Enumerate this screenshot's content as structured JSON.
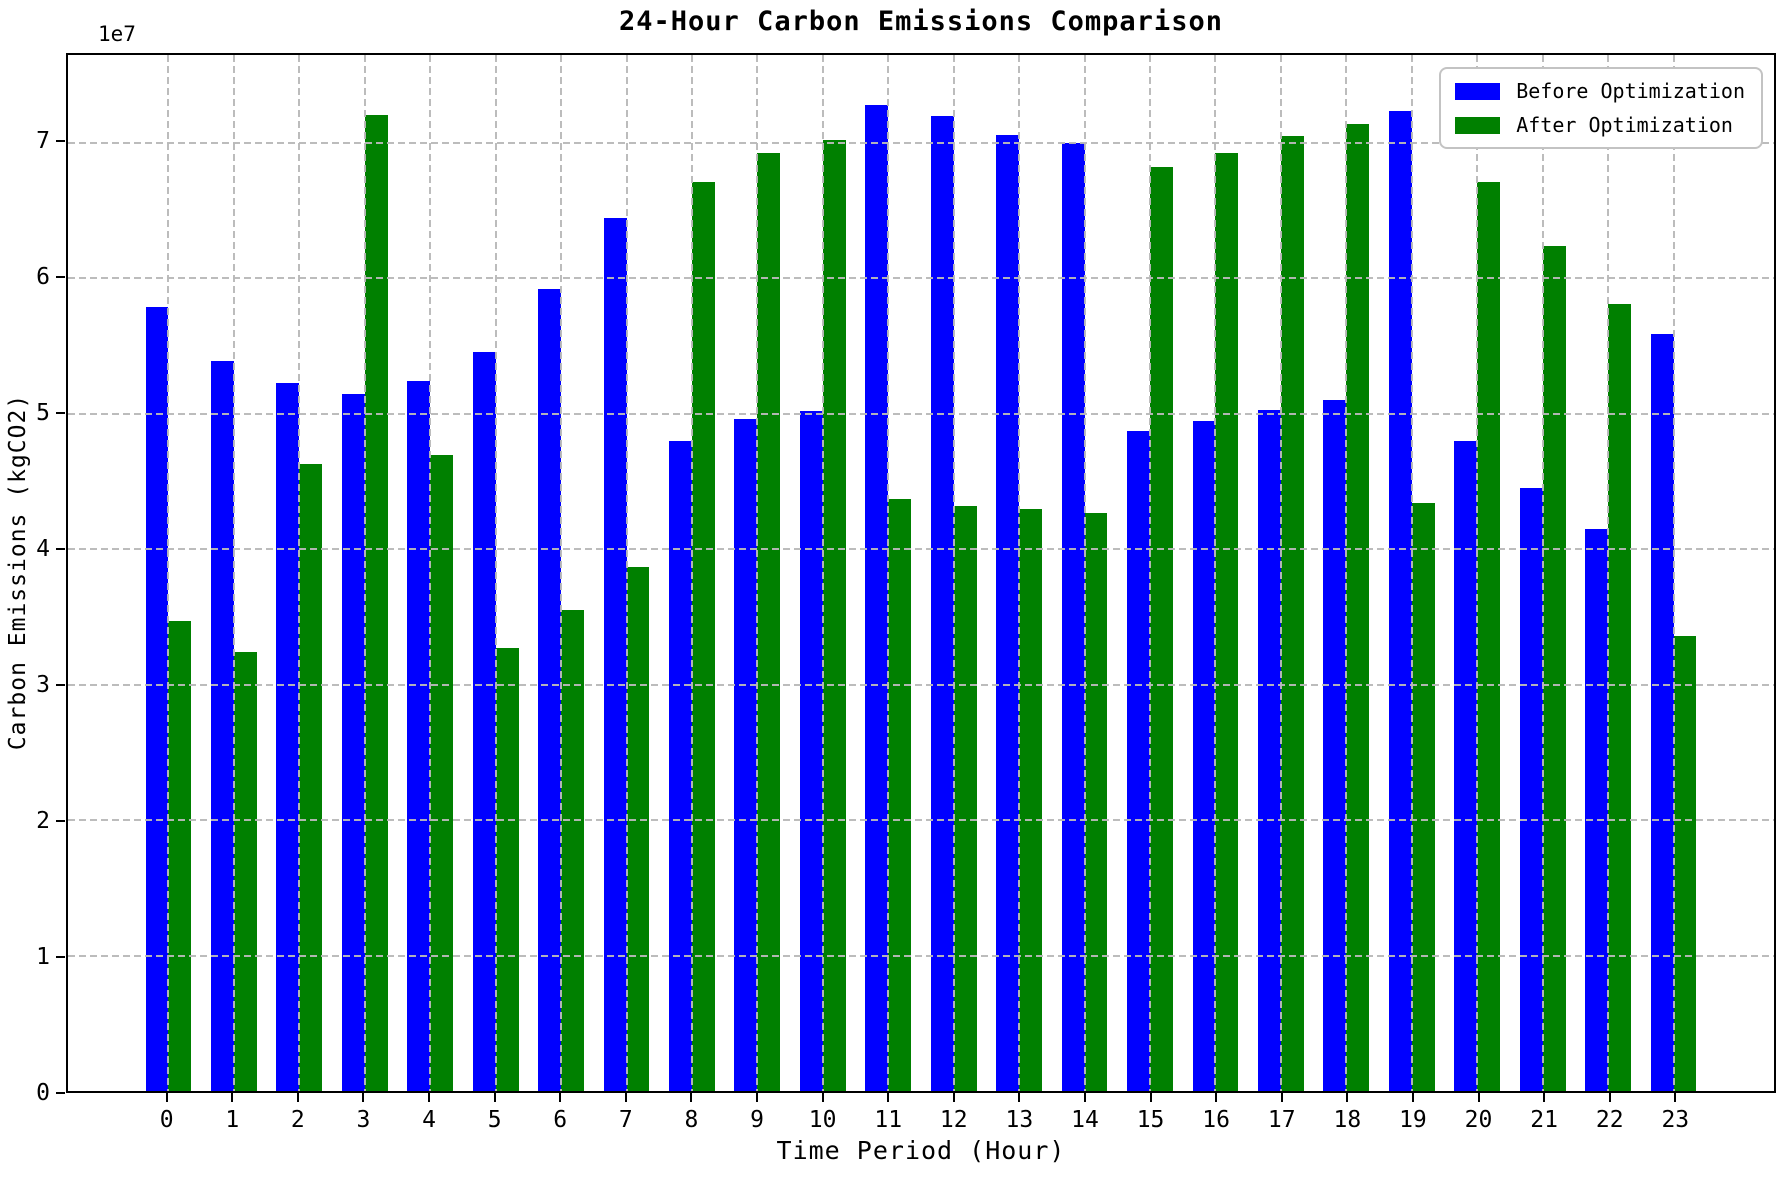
{
  "chart_data": {
    "type": "bar",
    "title": "24-Hour Carbon Emissions Comparison",
    "xlabel": "Time Period (Hour)",
    "ylabel": "Carbon Emissions (kgCO2)",
    "y_offset_label": "1e7",
    "categories": [
      "0",
      "1",
      "2",
      "3",
      "4",
      "5",
      "6",
      "7",
      "8",
      "9",
      "10",
      "11",
      "12",
      "13",
      "14",
      "15",
      "16",
      "17",
      "18",
      "19",
      "20",
      "21",
      "22",
      "23"
    ],
    "series": [
      {
        "name": "Before Optimization",
        "color": "#0000ff",
        "values": [
          57900000,
          53900000,
          52300000,
          51500000,
          52400000,
          54600000,
          59200000,
          64500000,
          48000000,
          49600000,
          50200000,
          72800000,
          72000000,
          70600000,
          70000000,
          48700000,
          49500000,
          50300000,
          51000000,
          72400000,
          48000000,
          44500000,
          41500000,
          55900000
        ]
      },
      {
        "name": "After Optimization",
        "color": "#008000",
        "values": [
          34700000,
          32400000,
          46300000,
          72100000,
          47000000,
          32700000,
          35500000,
          38700000,
          67100000,
          69300000,
          70200000,
          43700000,
          43200000,
          43000000,
          42700000,
          68200000,
          69300000,
          70500000,
          71400000,
          43400000,
          67100000,
          62400000,
          58100000,
          33600000
        ]
      }
    ],
    "bar_width": 0.35,
    "xlim": [
      -1.535,
      24.535
    ],
    "ylim": [
      0,
      76500000
    ],
    "yticks": [
      0,
      10000000,
      20000000,
      30000000,
      40000000,
      50000000,
      60000000,
      70000000
    ],
    "ytick_labels": [
      "0",
      "1",
      "2",
      "3",
      "4",
      "5",
      "6",
      "7"
    ],
    "grid": true,
    "grid_style": "dashed",
    "legend_position": "upper right"
  },
  "legend": {
    "items": [
      {
        "label": "Before Optimization",
        "color": "#0000ff"
      },
      {
        "label": "After Optimization",
        "color": "#008000"
      }
    ]
  }
}
